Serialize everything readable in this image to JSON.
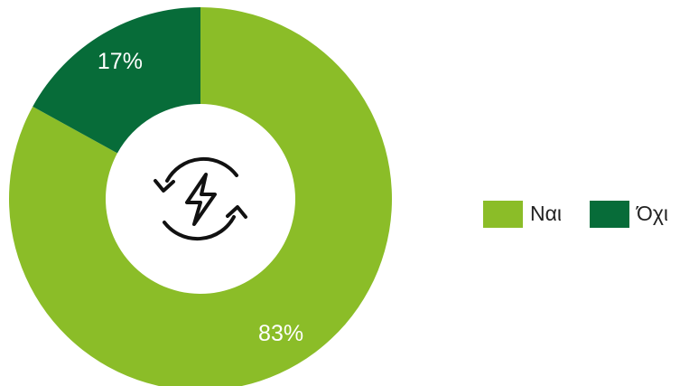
{
  "chart_data": {
    "type": "donut",
    "categories": [
      "Ναι",
      "Όχι"
    ],
    "values": [
      83,
      17
    ],
    "value_labels": [
      "83%",
      "17%"
    ],
    "colors": [
      "#8bbd28",
      "#076c39"
    ],
    "legend": "right"
  }
}
